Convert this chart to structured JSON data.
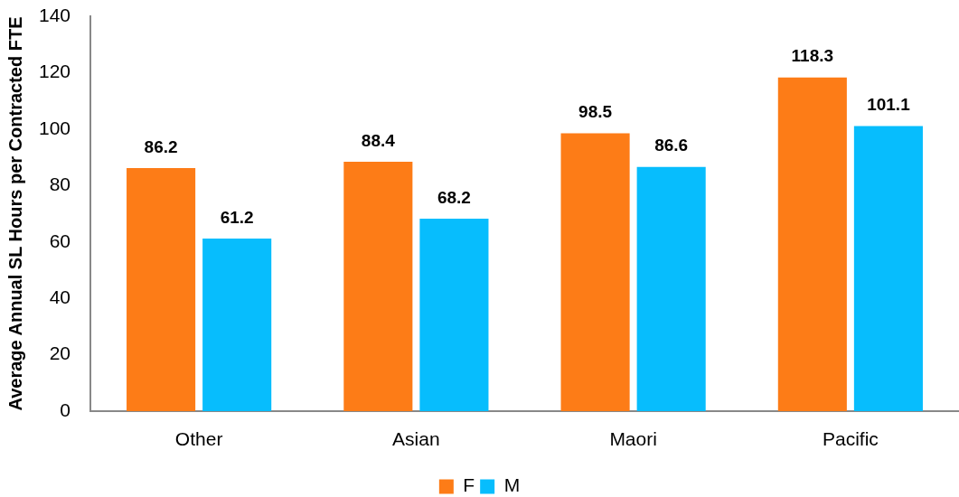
{
  "chart_data": {
    "type": "bar",
    "ylabel": "Average Annual SL Hours per Contracted FTE",
    "categories": [
      "Other",
      "Asian",
      "Maori",
      "Pacific"
    ],
    "series": [
      {
        "name": "F",
        "color": "#fd7c17",
        "values": [
          86.2,
          88.4,
          98.5,
          118.3
        ]
      },
      {
        "name": "M",
        "color": "#07bdfd",
        "values": [
          61.2,
          68.2,
          86.6,
          101.1
        ]
      }
    ],
    "ylim": [
      0,
      140
    ],
    "yticks": [
      0,
      20,
      40,
      60,
      80,
      100,
      120,
      140
    ],
    "data_labels": true,
    "legend": "bottom"
  }
}
